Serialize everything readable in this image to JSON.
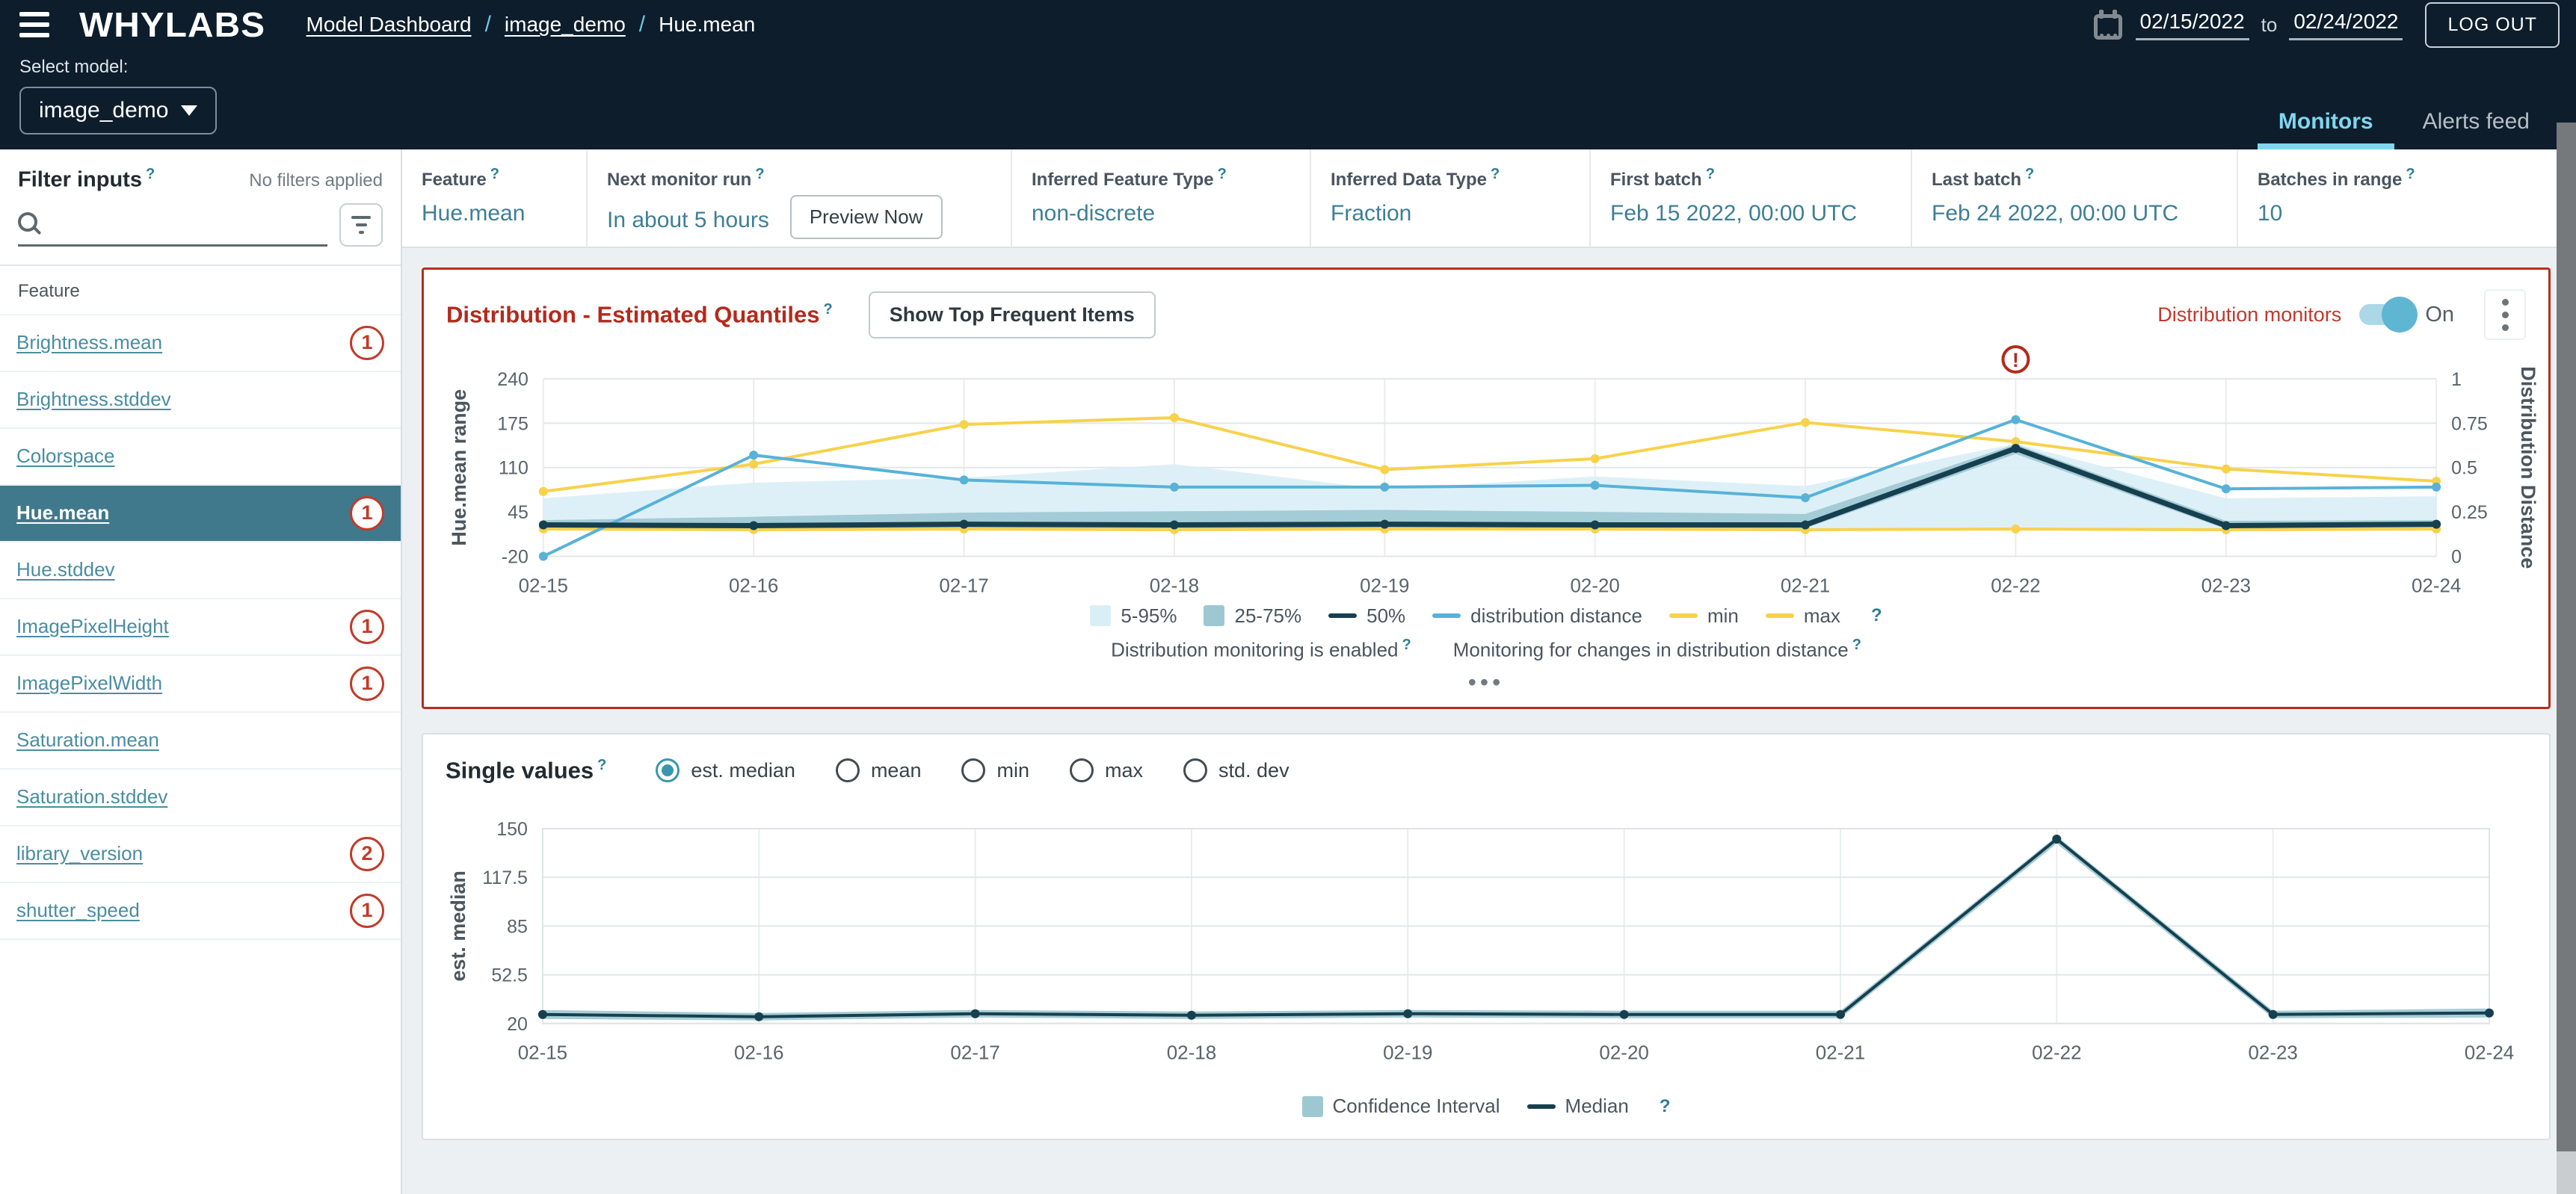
{
  "ui": {
    "help": "?",
    "dots": "•••"
  },
  "header": {
    "logo": "WHYLABS",
    "breadcrumb": {
      "items": [
        "Model Dashboard",
        "image_demo"
      ],
      "current": "Hue.mean",
      "separator": "/"
    },
    "date_from": "02/15/2022",
    "date_word": "to",
    "date_to": "02/24/2022",
    "logout_label": "LOG OUT",
    "select_model_label": "Select model:",
    "model_value": "image_demo",
    "tabs": [
      {
        "label": "Monitors",
        "active": true
      },
      {
        "label": "Alerts feed",
        "active": false
      }
    ]
  },
  "sidebar": {
    "title": "Filter inputs",
    "applied": "No filters applied",
    "feature_header": "Feature",
    "items": [
      {
        "label": "Brightness.mean",
        "badge": "1"
      },
      {
        "label": "Brightness.stddev",
        "badge": ""
      },
      {
        "label": "Colorspace",
        "badge": ""
      },
      {
        "label": "Hue.mean",
        "badge": "1",
        "selected": true
      },
      {
        "label": "Hue.stddev",
        "badge": ""
      },
      {
        "label": "ImagePixelHeight",
        "badge": "1"
      },
      {
        "label": "ImagePixelWidth",
        "badge": "1"
      },
      {
        "label": "Saturation.mean",
        "badge": ""
      },
      {
        "label": "Saturation.stddev",
        "badge": ""
      },
      {
        "label": "library_version",
        "badge": "2"
      },
      {
        "label": "shutter_speed",
        "badge": "1"
      }
    ]
  },
  "info_bar": {
    "columns": [
      {
        "label": "Feature",
        "value": "Hue.mean"
      },
      {
        "label": "Next monitor run",
        "value": "In about 5 hours",
        "button": "Preview Now"
      },
      {
        "label": "Inferred Feature Type",
        "value": "non-discrete"
      },
      {
        "label": "Inferred Data Type",
        "value": "Fraction"
      },
      {
        "label": "First batch",
        "value": "Feb 15 2022, 00:00 UTC"
      },
      {
        "label": "Last batch",
        "value": "Feb 24 2022, 00:00 UTC"
      },
      {
        "label": "Batches in range",
        "value": "10"
      }
    ]
  },
  "distribution_panel": {
    "title": "Distribution - Estimated Quantiles",
    "top_items_button": "Show Top Frequent Items",
    "monitors_label": "Distribution monitors",
    "toggle_state": "On",
    "legend": [
      "5-95%",
      "25-75%",
      "50%",
      "distribution distance",
      "min",
      "max"
    ],
    "captions": [
      "Distribution monitoring is enabled",
      "Monitoring for changes in distribution distance"
    ]
  },
  "single_values_panel": {
    "title": "Single values",
    "radios": [
      "est. median",
      "mean",
      "min",
      "max",
      "std. dev"
    ],
    "selected_radio": "est. median",
    "legend": [
      "Confidence Interval",
      "Median"
    ]
  },
  "colors": {
    "header_bg": "#0d1d2c",
    "accent_teal": "#4a8da1",
    "selected_row": "#40798c",
    "alert_red": "#b5291c",
    "badge_red": "#c23b2a",
    "tab_cyan": "#7fd7ef",
    "yellow": "#f7d24a",
    "blue": "#58b2d8",
    "navy": "#16404f",
    "band_light": "#daeef6",
    "band_mid": "#9dc8d2"
  },
  "chart_data": [
    {
      "type": "line",
      "title": "Distribution - Estimated Quantiles",
      "categories": [
        "02-15",
        "02-16",
        "02-17",
        "02-18",
        "02-19",
        "02-20",
        "02-21",
        "02-22",
        "02-23",
        "02-24"
      ],
      "y_left": {
        "label": "Hue.mean range",
        "min": -20,
        "max": 240,
        "ticks": [
          240,
          175,
          110,
          45,
          -20
        ]
      },
      "y_right": {
        "label": "Distribution Distance",
        "min": 0,
        "max": 1,
        "ticks": [
          1,
          0.75,
          0.5,
          0.25,
          0
        ]
      },
      "alert_category": "02-22",
      "grid": true,
      "legend_position": "bottom",
      "series": [
        {
          "name": "5-95%",
          "type": "band",
          "axis": "left",
          "color": "#daeef6",
          "upper": [
            65,
            88,
            95,
            115,
            78,
            97,
            83,
            145,
            65,
            68
          ],
          "lower": [
            20,
            19,
            20,
            19,
            20,
            20,
            19,
            20,
            19,
            20
          ]
        },
        {
          "name": "25-75%",
          "type": "band",
          "axis": "left",
          "color": "#9dc8d2",
          "upper": [
            33,
            38,
            44,
            46,
            48,
            45,
            42,
            144,
            32,
            33
          ],
          "lower": [
            21,
            20,
            21,
            21,
            21,
            21,
            21,
            130,
            20,
            21
          ]
        },
        {
          "name": "max",
          "type": "line",
          "axis": "left",
          "color": "#f7d24a",
          "width": 4,
          "values": [
            75,
            115,
            173,
            183,
            107,
            123,
            176,
            148,
            108,
            90
          ]
        },
        {
          "name": "min",
          "type": "line",
          "axis": "left",
          "color": "#f7d24a",
          "width": 4,
          "values": [
            20,
            19,
            20,
            19,
            20,
            20,
            19,
            20,
            19,
            20
          ]
        },
        {
          "name": "distribution distance",
          "type": "line",
          "axis": "right",
          "color": "#58b2d8",
          "width": 4,
          "values": [
            0,
            0.57,
            0.43,
            0.39,
            0.39,
            0.4,
            0.33,
            0.77,
            0.38,
            0.39
          ]
        },
        {
          "name": "50%",
          "type": "line",
          "axis": "left",
          "color": "#16404f",
          "width": 7,
          "values": [
            26,
            25,
            27,
            26,
            27,
            26,
            26,
            138,
            25,
            27
          ]
        }
      ]
    },
    {
      "type": "line",
      "title": "Single values",
      "categories": [
        "02-15",
        "02-16",
        "02-17",
        "02-18",
        "02-19",
        "02-20",
        "02-21",
        "02-22",
        "02-23",
        "02-24"
      ],
      "y_left": {
        "label": "est. median",
        "min": 20,
        "max": 150,
        "ticks": [
          150,
          117.5,
          85,
          52.5,
          20
        ]
      },
      "grid": true,
      "border": true,
      "legend_position": "bottom",
      "series": [
        {
          "name": "Confidence Interval",
          "type": "band",
          "axis": "left",
          "color": "#9dc8d2",
          "upper": [
            29,
            27,
            29,
            28,
            29,
            28.5,
            28.5,
            145,
            28.5,
            30
          ],
          "lower": [
            23,
            22,
            24,
            23,
            24,
            23.5,
            23.5,
            140,
            23.5,
            24
          ]
        },
        {
          "name": "Median",
          "type": "line",
          "axis": "left",
          "color": "#16404f",
          "width": 4,
          "values": [
            26,
            24.5,
            26.5,
            25.5,
            26.5,
            26,
            26,
            143,
            26,
            27
          ]
        }
      ]
    }
  ]
}
